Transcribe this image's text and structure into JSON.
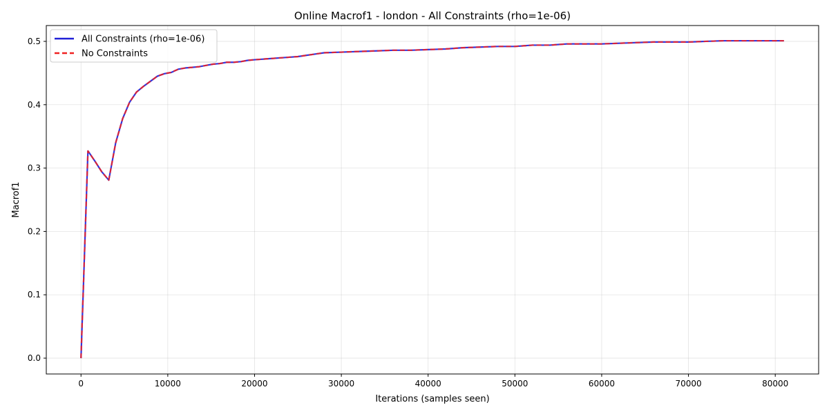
{
  "chart_data": {
    "type": "line",
    "title": "Online Macrof1 - london - All Constraints (rho=1e-06)",
    "xlabel": "Iterations (samples seen)",
    "ylabel": "Macrof1",
    "xlim": [
      -4000,
      85000
    ],
    "ylim": [
      -0.025,
      0.525
    ],
    "xticks": [
      0,
      10000,
      20000,
      30000,
      40000,
      50000,
      60000,
      70000,
      80000
    ],
    "xtick_labels": [
      "0",
      "10000",
      "20000",
      "30000",
      "40000",
      "50000",
      "60000",
      "70000",
      "80000"
    ],
    "yticks": [
      0.0,
      0.1,
      0.2,
      0.3,
      0.4,
      0.5
    ],
    "ytick_labels": [
      "0.0",
      "0.1",
      "0.2",
      "0.3",
      "0.4",
      "0.5"
    ],
    "grid": true,
    "legend_position": "top-left",
    "x": [
      0,
      800,
      1600,
      2400,
      3200,
      4000,
      4800,
      5600,
      6400,
      7200,
      8000,
      8800,
      9600,
      10400,
      11200,
      12000,
      12800,
      13600,
      14400,
      15200,
      16000,
      16800,
      17600,
      18400,
      19200,
      20000,
      21000,
      22000,
      23000,
      24000,
      25000,
      26000,
      27000,
      28000,
      30000,
      32000,
      34000,
      36000,
      38000,
      40000,
      42000,
      44000,
      46000,
      48000,
      50000,
      52000,
      54000,
      56000,
      58000,
      60000,
      62000,
      64000,
      66000,
      68000,
      70000,
      72000,
      74000,
      76000,
      78000,
      81000
    ],
    "series": [
      {
        "name": "All Constraints (rho=1e-06)",
        "color": "#1f1fd6",
        "style": "solid",
        "values": [
          0.0,
          0.327,
          0.311,
          0.294,
          0.281,
          0.34,
          0.378,
          0.404,
          0.42,
          0.429,
          0.437,
          0.445,
          0.449,
          0.451,
          0.456,
          0.458,
          0.459,
          0.46,
          0.462,
          0.464,
          0.465,
          0.467,
          0.467,
          0.468,
          0.47,
          0.471,
          0.472,
          0.473,
          0.474,
          0.475,
          0.476,
          0.478,
          0.48,
          0.482,
          0.483,
          0.484,
          0.485,
          0.486,
          0.486,
          0.487,
          0.488,
          0.49,
          0.491,
          0.492,
          0.492,
          0.494,
          0.494,
          0.496,
          0.496,
          0.496,
          0.497,
          0.498,
          0.499,
          0.499,
          0.499,
          0.5,
          0.501,
          0.501,
          0.501,
          0.501
        ]
      },
      {
        "name": "No Constraints",
        "color": "#f02020",
        "style": "dashed",
        "values": [
          0.0,
          0.327,
          0.311,
          0.294,
          0.281,
          0.34,
          0.378,
          0.404,
          0.42,
          0.429,
          0.437,
          0.445,
          0.449,
          0.451,
          0.456,
          0.458,
          0.459,
          0.46,
          0.462,
          0.464,
          0.465,
          0.467,
          0.467,
          0.468,
          0.47,
          0.471,
          0.472,
          0.473,
          0.474,
          0.475,
          0.476,
          0.478,
          0.48,
          0.482,
          0.483,
          0.484,
          0.485,
          0.486,
          0.486,
          0.487,
          0.488,
          0.49,
          0.491,
          0.492,
          0.492,
          0.494,
          0.494,
          0.496,
          0.496,
          0.496,
          0.497,
          0.498,
          0.499,
          0.499,
          0.499,
          0.5,
          0.501,
          0.501,
          0.501,
          0.501
        ]
      }
    ]
  }
}
